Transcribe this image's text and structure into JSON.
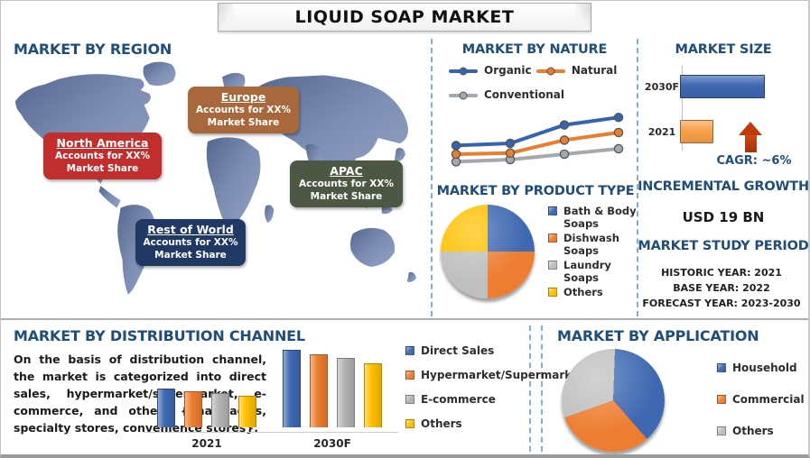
{
  "window": {
    "title": "LIQUID SOAP MARKET"
  },
  "palette": {
    "heading_blue": "#1F4E79",
    "divider_dash_blue": "#7EB0DC",
    "map_fill_dark": "#5A6C96",
    "map_fill_light": "#93A2C2",
    "arrow_red": "#C0390B"
  },
  "region": {
    "heading": "MARKET BY REGION",
    "callouts": [
      {
        "name": "North America",
        "line1": "Accounts for XX%",
        "line2": "Market Share",
        "color": "#C02E2E"
      },
      {
        "name": "Europe",
        "line1": "Accounts for XX%",
        "line2": "Market Share",
        "color": "#A9683B"
      },
      {
        "name": "APAC",
        "line1": "Accounts for XX%",
        "line2": "Market Share",
        "color": "#4D5844"
      },
      {
        "name": "Rest of World",
        "line1": "Accounts for XX%",
        "line2": "Market Share",
        "color": "#1F3864"
      }
    ]
  },
  "nature": {
    "heading": "MARKET BY NATURE"
  },
  "product_type": {
    "heading": "MARKET BY PRODUCT TYPE"
  },
  "market_size": {
    "heading": "MARKET SIZE",
    "cagr_label": "CAGR:  ~6%"
  },
  "incremental_growth": {
    "heading": "INCREMENTAL GROWTH",
    "value": "USD 19 BN"
  },
  "study_period": {
    "heading": "MARKET STUDY PERIOD",
    "historic": "HISTORIC YEAR: 2021",
    "base": "BASE YEAR: 2022",
    "forecast": "FORECAST YEAR: 2023-2030"
  },
  "distribution": {
    "heading": "MARKET BY DISTRIBUTION CHANNEL",
    "paragraph": "On the basis of distribution channel, the market is categorized into direct sales, hypermarket/supermarket, e-commerce, and others {pharmacies, specialty stores, convenience stores}."
  },
  "application": {
    "heading": "MARKET BY APPLICATION"
  },
  "chart_data": [
    {
      "id": "nature-lines",
      "type": "line",
      "title": "MARKET BY NATURE",
      "x": [
        1,
        2,
        3,
        4
      ],
      "x_tick_labels_shown": false,
      "ylim": [
        0,
        6.5
      ],
      "grid": false,
      "legend_position": "top",
      "series": [
        {
          "name": "Organic",
          "color": "#3563AC",
          "values": [
            2.8,
            3.0,
            4.7,
            5.4
          ]
        },
        {
          "name": "Natural",
          "color": "#E87E2E",
          "values": [
            2.0,
            2.1,
            3.3,
            4.0
          ]
        },
        {
          "name": "Conventional",
          "color": "#A5A8AC",
          "values": [
            1.3,
            1.5,
            2.0,
            2.5
          ]
        }
      ]
    },
    {
      "id": "market-size",
      "type": "bar",
      "orientation": "horizontal",
      "title": "MARKET SIZE",
      "categories": [
        "2030F",
        "2021"
      ],
      "values": [
        94,
        37
      ],
      "value_units": "relative bar length (axis unlabeled)",
      "colors": [
        "#3E68B1",
        "#F9A04B"
      ],
      "annotation": "CAGR:  ~6%"
    },
    {
      "id": "product-type-pie",
      "type": "pie",
      "title": "MARKET BY PRODUCT TYPE",
      "start_angle": 0,
      "labels": [
        "Bath & Body Soaps",
        "Dishwash Soaps",
        "Laundry Soaps",
        "Others"
      ],
      "values": [
        25,
        25,
        25,
        25
      ],
      "value_units": "percent (shares not labeled, equal quarters shown)",
      "colors": [
        "#3E68B1",
        "#ED7D31",
        "#BFBFBF",
        "#FFC000"
      ],
      "legend_position": "right"
    },
    {
      "id": "distribution-bars",
      "type": "bar",
      "orientation": "vertical",
      "title": "MARKET BY DISTRIBUTION CHANNEL",
      "categories": [
        "2021",
        "2030F"
      ],
      "ylim": [
        0,
        10
      ],
      "value_units": "relative bar height (axis unlabeled)",
      "series": [
        {
          "name": "Direct Sales",
          "color": "#3E68B1",
          "values": [
            4.6,
            9.1
          ]
        },
        {
          "name": "Hypermarket/Supermarket",
          "color": "#ED7D31",
          "values": [
            4.3,
            8.6
          ]
        },
        {
          "name": "E-commerce",
          "color": "#B3B3B3",
          "values": [
            4.0,
            8.2
          ]
        },
        {
          "name": "Others",
          "color": "#FFC000",
          "values": [
            3.7,
            7.6
          ]
        }
      ],
      "legend_position": "right"
    },
    {
      "id": "application-pie",
      "type": "pie",
      "title": "MARKET BY APPLICATION",
      "start_angle": 2,
      "labels": [
        "Household",
        "Commercial",
        "Others"
      ],
      "values": [
        38,
        31,
        31
      ],
      "value_units": "percent (shares not labeled, estimated from slice angles)",
      "colors": [
        "#3E68B1",
        "#ED7D31",
        "#BFBFBF"
      ],
      "legend_position": "right"
    }
  ]
}
